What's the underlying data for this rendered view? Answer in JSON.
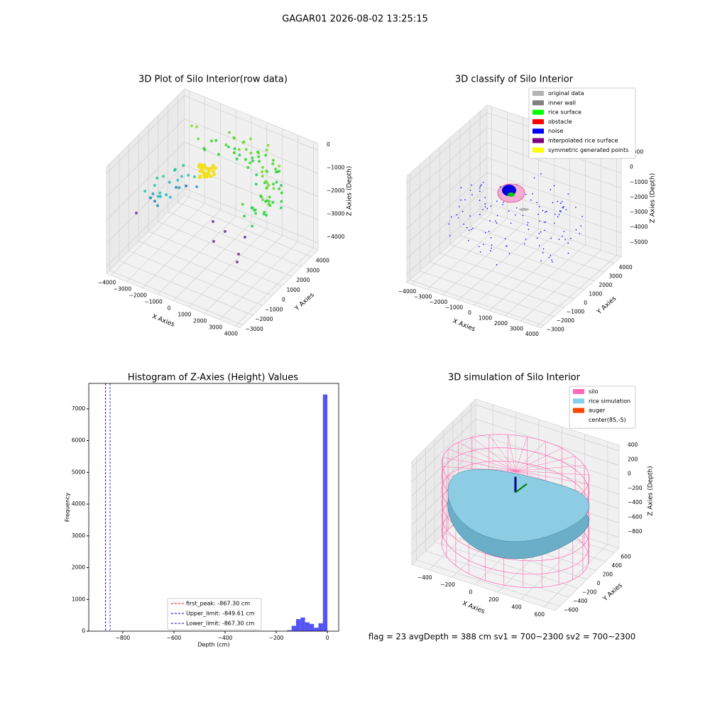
{
  "title": "GAGAR01 2026-08-02 13:25:15",
  "footer": "flag = 23  avgDepth = 388 cm  sv1 = 700~2300  sv2 = 700~2300",
  "chart_data": [
    {
      "type": "scatter3d",
      "title": "3D Plot of Silo Interior(row data)",
      "xlabel": "X Axies",
      "ylabel": "Y Axies",
      "zlabel": "Z Axies (Depth)",
      "xlim": [
        -4300,
        4300
      ],
      "ylim": [
        -3300,
        4700
      ],
      "zlim": [
        -4300,
        300
      ],
      "xticks": [
        {
          "value": -4000,
          "label": "−4000"
        },
        {
          "value": -3000,
          "label": "−3000"
        },
        {
          "value": -2000,
          "label": "−2000"
        },
        {
          "value": -1000,
          "label": "−1000"
        },
        0,
        1000,
        2000,
        3000,
        4000
      ],
      "yticks": [
        {
          "value": -3000,
          "label": "−3000"
        },
        {
          "value": -2000,
          "label": "−2000"
        },
        {
          "value": -1000,
          "label": "−1000"
        },
        0,
        1000,
        2000,
        3000,
        4000
      ],
      "zticks": [
        {
          "value": -4000,
          "label": "−4000"
        },
        {
          "value": -3000,
          "label": "−3000"
        },
        {
          "value": -2000,
          "label": "−2000"
        },
        {
          "value": -1000,
          "label": "−1000"
        },
        0
      ]
    },
    {
      "type": "scatter3d",
      "title": "3D classify of Silo Interior",
      "xlabel": "X Axies",
      "ylabel": "Y Axies",
      "zlabel": "Z Axies (Depth)",
      "xlim": [
        -4300,
        4300
      ],
      "ylim": [
        -3300,
        4700
      ],
      "zlim": [
        -5600,
        1500
      ],
      "xticks": [
        {
          "value": -4000,
          "label": "−4000"
        },
        {
          "value": -3000,
          "label": "−3000"
        },
        {
          "value": -2000,
          "label": "−2000"
        },
        {
          "value": -1000,
          "label": "−1000"
        },
        0,
        1000,
        2000,
        3000,
        4000
      ],
      "yticks": [
        {
          "value": -3000,
          "label": "−3000"
        },
        {
          "value": -2000,
          "label": "−2000"
        },
        {
          "value": -1000,
          "label": "−1000"
        },
        0,
        1000,
        2000,
        3000,
        4000
      ],
      "zticks": [
        {
          "value": -5000,
          "label": "−5000"
        },
        {
          "value": -4000,
          "label": "−4000"
        },
        {
          "value": -3000,
          "label": "−3000"
        },
        {
          "value": -2000,
          "label": "−2000"
        },
        {
          "value": -1000,
          "label": "−1000"
        },
        0,
        1000
      ],
      "legend": [
        {
          "label": "original data",
          "color": "#b3b3b3"
        },
        {
          "label": "inner wall",
          "color": "#808080"
        },
        {
          "label": "rice surface",
          "color": "#00ff00"
        },
        {
          "label": "obstacle",
          "color": "#ff0000"
        },
        {
          "label": "noise",
          "color": "#0000ff"
        },
        {
          "label": "interpolated rice surface",
          "color": "#800080"
        },
        {
          "label": "symmetric generated points",
          "color": "#ffff00"
        }
      ]
    },
    {
      "type": "histogram",
      "title": "Histogram of Z-Axies (Height) Values",
      "xlabel": "Depth (cm)",
      "ylabel": "Frequency",
      "color": "#4b4bf5",
      "bins": [
        -297.5,
        -280,
        -262.5,
        -245,
        -227.5,
        -210,
        -192.5,
        -175,
        -157.5,
        -140,
        -122.5,
        -105,
        -87.5,
        -70,
        -52.5,
        -35,
        -17.5,
        0
      ],
      "counts": [
        10,
        0,
        0,
        0,
        0,
        8,
        0,
        0,
        30,
        170,
        380,
        430,
        280,
        230,
        110,
        250,
        7450
      ],
      "xlim": [
        -933,
        44
      ],
      "ylim": [
        0,
        7800
      ],
      "xticks": [
        {
          "value": -800,
          "label": "−800"
        },
        {
          "value": -600,
          "label": "−600"
        },
        {
          "value": -400,
          "label": "−400"
        },
        {
          "value": -200,
          "label": "−200"
        },
        0
      ],
      "yticks": [
        0,
        1000,
        2000,
        3000,
        4000,
        5000,
        6000,
        7000
      ],
      "vlines": [
        {
          "value": -867.3,
          "label": "first_peak: -867.30 cm",
          "color": "#ff0000"
        },
        {
          "value": -849.61,
          "label": "Upper_limit: -849.61 cm",
          "color": "#0000ff"
        },
        {
          "value": -867.3,
          "label": "Lower_limit: -867.30 cm",
          "color": "#0000cc"
        }
      ]
    },
    {
      "type": "surface3d",
      "title": "3D simulation of Silo Interior",
      "xlabel": "X Axies",
      "ylabel": "Y Axies",
      "zlabel": "Z Axies (Depth)",
      "xlim": [
        -550,
        700
      ],
      "ylim": [
        -700,
        700
      ],
      "zlim": [
        -950,
        480
      ],
      "xticks": [
        {
          "value": -400,
          "label": "−400"
        },
        {
          "value": -200,
          "label": "−200"
        },
        0,
        200,
        400,
        600
      ],
      "yticks": [
        {
          "value": -600,
          "label": "−600"
        },
        {
          "value": -400,
          "label": "−400"
        },
        {
          "value": -200,
          "label": "−200"
        },
        0,
        200,
        400,
        600
      ],
      "zticks": [
        {
          "value": -800,
          "label": "−800"
        },
        {
          "value": -600,
          "label": "−600"
        },
        {
          "value": -400,
          "label": "−400"
        },
        {
          "value": -200,
          "label": "−200"
        },
        0,
        200,
        400
      ],
      "legend": [
        {
          "label": "silo",
          "color": "#ff69b4"
        },
        {
          "label": "rice simulation",
          "color": "#87ceeb"
        },
        {
          "label": "auger",
          "color": "#ff4500"
        },
        {
          "label": "center(85,-5)",
          "color": "#ffffff"
        }
      ]
    }
  ]
}
